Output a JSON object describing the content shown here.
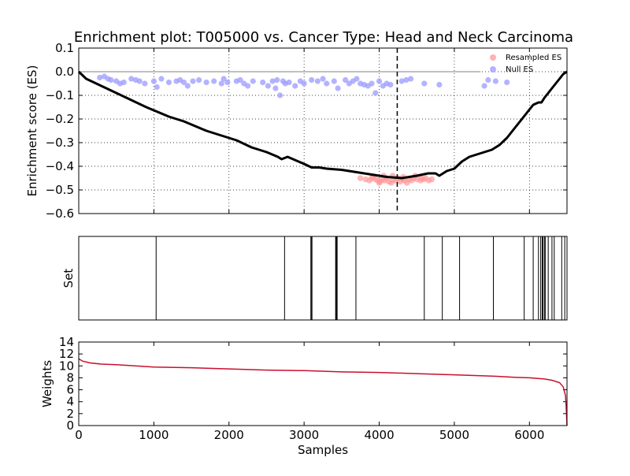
{
  "chart_data": [
    {
      "type": "line",
      "title": "Enrichment plot: T005000 vs. Cancer Type: Head and Neck Carcinoma",
      "ylabel": "Enrichment score (ES)",
      "xlim": [
        0,
        6500
      ],
      "ylim": [
        -0.6,
        0.1
      ],
      "yticks": [
        "0.1",
        "0.0",
        "−0.1",
        "−0.2",
        "−0.3",
        "−0.4",
        "−0.5",
        "−0.6"
      ],
      "ytick_values": [
        0.1,
        0.0,
        -0.1,
        -0.2,
        -0.3,
        -0.4,
        -0.5,
        -0.6
      ],
      "xtick_values": [
        1000,
        2000,
        3000,
        4000,
        5000,
        6000
      ],
      "grid": true,
      "legend_position": "top-right",
      "legend": [
        {
          "label": "Resampled ES",
          "color": "#ff9999"
        },
        {
          "label": "Null ES",
          "color": "#9999ff"
        }
      ],
      "es_color": "#000000",
      "baseline": {
        "x_start": 0,
        "x_end": 5350,
        "y": 0.0,
        "color": "#808080"
      },
      "max_es_marker": {
        "x": 4240,
        "style": "dashed"
      },
      "es_curve": {
        "x": [
          0,
          100,
          300,
          500,
          700,
          900,
          1050,
          1200,
          1400,
          1550,
          1700,
          1900,
          2100,
          2300,
          2500,
          2650,
          2700,
          2780,
          3000,
          3100,
          3200,
          3300,
          3500,
          3700,
          3900,
          4000,
          4100,
          4300,
          4500,
          4650,
          4750,
          4800,
          4850,
          4900,
          5000,
          5100,
          5200,
          5300,
          5400,
          5500,
          5600,
          5700,
          5800,
          5900,
          6000,
          6050,
          6120,
          6160,
          6200,
          6250,
          6300,
          6350,
          6400,
          6450,
          6500
        ],
        "y": [
          0.0,
          -0.03,
          -0.06,
          -0.09,
          -0.12,
          -0.15,
          -0.17,
          -0.19,
          -0.21,
          -0.23,
          -0.25,
          -0.27,
          -0.29,
          -0.32,
          -0.34,
          -0.36,
          -0.37,
          -0.36,
          -0.39,
          -0.405,
          -0.405,
          -0.41,
          -0.415,
          -0.425,
          -0.435,
          -0.44,
          -0.445,
          -0.45,
          -0.44,
          -0.43,
          -0.43,
          -0.44,
          -0.43,
          -0.42,
          -0.41,
          -0.38,
          -0.36,
          -0.35,
          -0.34,
          -0.33,
          -0.31,
          -0.28,
          -0.24,
          -0.2,
          -0.16,
          -0.14,
          -0.13,
          -0.13,
          -0.11,
          -0.09,
          -0.07,
          -0.05,
          -0.03,
          -0.01,
          0.0
        ]
      },
      "series": [
        {
          "name": "Resampled ES",
          "color": "#ff9999",
          "x": [
            3750,
            3820,
            3870,
            3900,
            3950,
            3980,
            4010,
            4040,
            4070,
            4100,
            4130,
            4160,
            4190,
            4220,
            4250,
            4280,
            4310,
            4340,
            4370,
            4400,
            4430,
            4460,
            4500,
            4550,
            4590,
            4620,
            4660,
            4700,
            3920,
            4060,
            4180,
            4320,
            4480,
            4560,
            4000
          ],
          "y": [
            -0.45,
            -0.455,
            -0.46,
            -0.45,
            -0.455,
            -0.46,
            -0.465,
            -0.455,
            -0.46,
            -0.45,
            -0.465,
            -0.47,
            -0.455,
            -0.46,
            -0.45,
            -0.465,
            -0.455,
            -0.46,
            -0.47,
            -0.455,
            -0.46,
            -0.45,
            -0.455,
            -0.46,
            -0.455,
            -0.45,
            -0.46,
            -0.455,
            -0.445,
            -0.44,
            -0.44,
            -0.445,
            -0.44,
            -0.45,
            -0.47
          ]
        },
        {
          "name": "Null ES",
          "color": "#9999ff",
          "x": [
            280,
            340,
            390,
            430,
            500,
            550,
            600,
            700,
            760,
            810,
            880,
            1000,
            1040,
            1100,
            1200,
            1300,
            1350,
            1400,
            1450,
            1520,
            1600,
            1700,
            1800,
            1900,
            1930,
            1980,
            2100,
            2150,
            2200,
            2250,
            2320,
            2450,
            2520,
            2580,
            2620,
            2640,
            2680,
            2720,
            2750,
            2800,
            2880,
            2950,
            3000,
            3100,
            3180,
            3250,
            3300,
            3400,
            3450,
            3550,
            3600,
            3650,
            3700,
            3750,
            3800,
            3850,
            3900,
            3950,
            4000,
            4050,
            4100,
            4150,
            4300,
            4360,
            4420,
            4600,
            4800,
            5400,
            5450,
            5550,
            5700
          ],
          "y": [
            -0.025,
            -0.02,
            -0.03,
            -0.035,
            -0.04,
            -0.05,
            -0.045,
            -0.03,
            -0.035,
            -0.04,
            -0.05,
            -0.04,
            -0.065,
            -0.03,
            -0.045,
            -0.04,
            -0.035,
            -0.045,
            -0.06,
            -0.04,
            -0.035,
            -0.045,
            -0.04,
            -0.05,
            -0.03,
            -0.045,
            -0.04,
            -0.035,
            -0.05,
            -0.06,
            -0.04,
            -0.045,
            -0.06,
            -0.04,
            -0.07,
            -0.035,
            -0.1,
            -0.04,
            -0.05,
            -0.045,
            -0.06,
            -0.04,
            -0.05,
            -0.035,
            -0.04,
            -0.03,
            -0.05,
            -0.04,
            -0.07,
            -0.035,
            -0.05,
            -0.04,
            -0.03,
            -0.05,
            -0.055,
            -0.06,
            -0.05,
            -0.09,
            -0.04,
            -0.06,
            -0.05,
            -0.055,
            -0.04,
            -0.035,
            -0.03,
            -0.05,
            -0.055,
            -0.06,
            -0.035,
            -0.04,
            -0.045
          ]
        }
      ]
    },
    {
      "type": "bar",
      "ylabel": "Set",
      "xlim": [
        0,
        6500
      ],
      "set_positions": [
        1030,
        2740,
        3090,
        3100,
        3105,
        3420,
        3425,
        3430,
        3440,
        3690,
        4600,
        4840,
        5070,
        5520,
        5930,
        6050,
        6120,
        6150,
        6170,
        6180,
        6200,
        6210,
        6250,
        6300,
        6330,
        6430,
        6470
      ]
    },
    {
      "type": "line",
      "xlabel": "Samples",
      "ylabel": "Weights",
      "xlim": [
        0,
        6500
      ],
      "ylim": [
        0,
        14
      ],
      "yticks": [
        "0",
        "2",
        "4",
        "6",
        "8",
        "10",
        "12",
        "14"
      ],
      "ytick_values": [
        0,
        2,
        4,
        6,
        8,
        10,
        12,
        14
      ],
      "xticks": [
        "0",
        "1000",
        "2000",
        "3000",
        "4000",
        "5000",
        "6000"
      ],
      "xtick_values": [
        0,
        1000,
        2000,
        3000,
        4000,
        5000,
        6000
      ],
      "line_color": "#c8102e",
      "x": [
        0,
        50,
        150,
        300,
        500,
        1000,
        1500,
        2000,
        2500,
        3000,
        3500,
        4000,
        4500,
        5000,
        5500,
        5800,
        6000,
        6200,
        6300,
        6400,
        6450,
        6480,
        6490,
        6500
      ],
      "y": [
        11.2,
        10.8,
        10.5,
        10.3,
        10.2,
        9.8,
        9.7,
        9.5,
        9.3,
        9.2,
        9.0,
        8.9,
        8.7,
        8.5,
        8.3,
        8.1,
        8.0,
        7.8,
        7.6,
        7.2,
        6.5,
        5.0,
        3.0,
        0.0
      ]
    }
  ]
}
